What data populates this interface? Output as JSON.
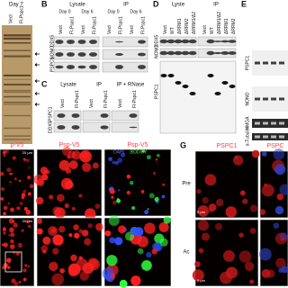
{
  "panel_a": {
    "title": "Day 7",
    "lanes": [
      "Vect",
      "Fl-Pspc1"
    ]
  },
  "panel_b": {
    "label": "B",
    "groups": [
      "Lysate",
      "IP"
    ],
    "days": [
      "Day 0",
      "Day 6",
      "Day 0",
      "Day 6"
    ],
    "lanes": [
      "Vect",
      "Fl-Pspc1",
      "Vect",
      "Fl-Pspc1",
      "Vect",
      "Fl-Pspc1",
      "Vect",
      "Fl-Pspc1"
    ],
    "rows": [
      "DDX5",
      "NONO",
      "PSPC1"
    ]
  },
  "panel_c": {
    "label": "C",
    "groups": [
      "Lysate",
      "IP",
      "IP + RNase"
    ],
    "lanes": [
      "Vect",
      "Fl-Pspc1",
      "Vect",
      "Fl-Pspc1",
      "Vect",
      "Fl-Pspc1"
    ],
    "rows": [
      "PSPC1",
      "DDX5"
    ]
  },
  "panel_d": {
    "label": "D",
    "groups": [
      "Lyste",
      "IP"
    ],
    "lanes": [
      "Vect",
      "WT",
      "ΔRRM1",
      "ΔRRM2",
      "ΔRRM1/Δ2",
      "Vect",
      "WT",
      "ΔRRM1/Δ2",
      "ΔRRM1",
      "ΔRRM2"
    ],
    "rows": [
      "DDX5",
      "NONO",
      "PSPC1"
    ]
  },
  "panel_e": {
    "label": "E",
    "rows": [
      "PSPC1",
      "NONO",
      "HMGA",
      "α-Tubulin"
    ]
  },
  "panel_f": {
    "titles": [
      "p-V5",
      "Psp-V5",
      "Psp-V5"
    ],
    "stain": [
      "DAPI",
      "BODIFY"
    ],
    "scale_bars": [
      "20 µm",
      "20 µm"
    ]
  },
  "panel_g": {
    "label": "G",
    "titles": [
      "PSPC1",
      "PSPC"
    ],
    "rows": [
      "Pre",
      "Ac"
    ],
    "scale_bars": [
      "5 µm",
      "5 µm"
    ]
  }
}
